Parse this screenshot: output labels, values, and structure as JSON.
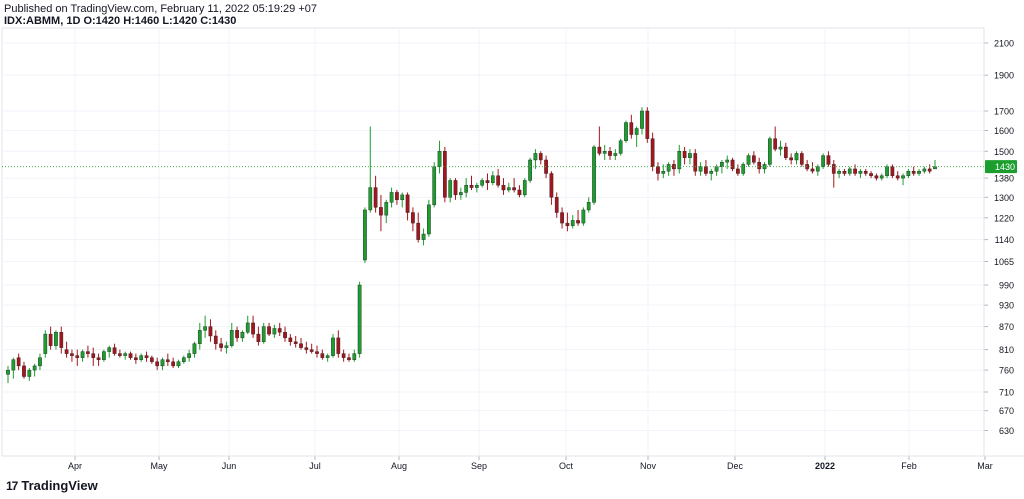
{
  "header": {
    "published": "Published on TradingView.com, February 11, 2022 05:19:29 +07",
    "symbol": "IDX:ABMM, 1D",
    "ohlc": "O:1420 H:1460 L:1420 C:1430"
  },
  "brand": {
    "logo": "17",
    "name": "TradingView"
  },
  "colors": {
    "up": "#1b9e2e",
    "down": "#a5151d",
    "grid": "#f0f3fa",
    "last_line": "#4caf50",
    "last_bg": "#1b9e2e"
  },
  "chart_data": {
    "type": "candlestick",
    "symbol": "IDX:ABMM",
    "interval": "1D",
    "last_price": 1430,
    "y_ticks": [
      2100,
      1900,
      1700,
      1600,
      1500,
      1380,
      1300,
      1220,
      1140,
      1065,
      990,
      930,
      870,
      810,
      760,
      710,
      670,
      630
    ],
    "x_labels": [
      "Apr",
      "May",
      "Jun",
      "Jul",
      "Aug",
      "Sep",
      "Oct",
      "Nov",
      "Dec",
      "2022",
      "Feb",
      "Mar"
    ],
    "y_scale": "log",
    "ylim": [
      582,
      2200
    ],
    "grid": true,
    "candles": [
      [
        750,
        770,
        730,
        760
      ],
      [
        760,
        790,
        740,
        785
      ],
      [
        790,
        800,
        760,
        770
      ],
      [
        770,
        780,
        740,
        745
      ],
      [
        745,
        765,
        735,
        760
      ],
      [
        760,
        775,
        745,
        770
      ],
      [
        770,
        800,
        760,
        790
      ],
      [
        800,
        860,
        790,
        850
      ],
      [
        850,
        870,
        810,
        820
      ],
      [
        820,
        860,
        810,
        855
      ],
      [
        855,
        870,
        800,
        815
      ],
      [
        810,
        830,
        790,
        800
      ],
      [
        800,
        810,
        780,
        795
      ],
      [
        795,
        810,
        770,
        790
      ],
      [
        790,
        810,
        780,
        805
      ],
      [
        805,
        820,
        790,
        800
      ],
      [
        800,
        815,
        770,
        790
      ],
      [
        790,
        800,
        770,
        785
      ],
      [
        785,
        810,
        780,
        805
      ],
      [
        805,
        820,
        790,
        815
      ],
      [
        815,
        825,
        795,
        800
      ],
      [
        800,
        810,
        790,
        795
      ],
      [
        795,
        805,
        785,
        800
      ],
      [
        800,
        805,
        785,
        790
      ],
      [
        790,
        800,
        775,
        785
      ],
      [
        785,
        800,
        780,
        795
      ],
      [
        795,
        805,
        780,
        790
      ],
      [
        790,
        795,
        775,
        780
      ],
      [
        780,
        790,
        760,
        770
      ],
      [
        770,
        790,
        760,
        785
      ],
      [
        785,
        800,
        770,
        780
      ],
      [
        780,
        790,
        765,
        770
      ],
      [
        770,
        785,
        765,
        780
      ],
      [
        780,
        795,
        775,
        790
      ],
      [
        790,
        810,
        780,
        800
      ],
      [
        800,
        830,
        790,
        825
      ],
      [
        825,
        880,
        810,
        860
      ],
      [
        860,
        900,
        840,
        870
      ],
      [
        870,
        890,
        830,
        845
      ],
      [
        845,
        860,
        810,
        825
      ],
      [
        825,
        840,
        805,
        815
      ],
      [
        815,
        830,
        800,
        820
      ],
      [
        820,
        880,
        815,
        860
      ],
      [
        860,
        870,
        830,
        840
      ],
      [
        840,
        860,
        830,
        855
      ],
      [
        855,
        900,
        850,
        880
      ],
      [
        880,
        900,
        840,
        850
      ],
      [
        850,
        870,
        820,
        830
      ],
      [
        830,
        880,
        825,
        870
      ],
      [
        870,
        880,
        845,
        850
      ],
      [
        850,
        875,
        840,
        865
      ],
      [
        865,
        880,
        845,
        855
      ],
      [
        855,
        870,
        830,
        840
      ],
      [
        840,
        850,
        820,
        830
      ],
      [
        830,
        845,
        815,
        825
      ],
      [
        825,
        840,
        810,
        815
      ],
      [
        815,
        830,
        800,
        810
      ],
      [
        810,
        825,
        800,
        805
      ],
      [
        805,
        820,
        790,
        800
      ],
      [
        800,
        810,
        785,
        790
      ],
      [
        790,
        800,
        780,
        795
      ],
      [
        795,
        850,
        790,
        840
      ],
      [
        840,
        860,
        790,
        800
      ],
      [
        800,
        810,
        780,
        790
      ],
      [
        790,
        800,
        780,
        785
      ],
      [
        785,
        810,
        780,
        800
      ],
      [
        800,
        1000,
        790,
        990
      ],
      [
        1070,
        1260,
        1060,
        1250
      ],
      [
        1250,
        1620,
        1240,
        1340
      ],
      [
        1340,
        1390,
        1240,
        1260
      ],
      [
        1260,
        1310,
        1170,
        1230
      ],
      [
        1230,
        1290,
        1200,
        1280
      ],
      [
        1280,
        1340,
        1260,
        1320
      ],
      [
        1320,
        1330,
        1270,
        1290
      ],
      [
        1290,
        1320,
        1260,
        1310
      ],
      [
        1310,
        1320,
        1210,
        1240
      ],
      [
        1240,
        1260,
        1170,
        1200
      ],
      [
        1200,
        1240,
        1130,
        1140
      ],
      [
        1140,
        1180,
        1120,
        1160
      ],
      [
        1160,
        1290,
        1150,
        1270
      ],
      [
        1270,
        1450,
        1260,
        1430
      ],
      [
        1430,
        1550,
        1400,
        1500
      ],
      [
        1500,
        1520,
        1280,
        1300
      ],
      [
        1300,
        1380,
        1280,
        1370
      ],
      [
        1370,
        1380,
        1290,
        1310
      ],
      [
        1310,
        1340,
        1290,
        1320
      ],
      [
        1320,
        1380,
        1300,
        1350
      ],
      [
        1350,
        1390,
        1330,
        1340
      ],
      [
        1340,
        1360,
        1320,
        1350
      ],
      [
        1350,
        1380,
        1340,
        1370
      ],
      [
        1370,
        1400,
        1330,
        1360
      ],
      [
        1360,
        1410,
        1350,
        1390
      ],
      [
        1390,
        1420,
        1340,
        1350
      ],
      [
        1350,
        1380,
        1310,
        1330
      ],
      [
        1330,
        1360,
        1320,
        1340
      ],
      [
        1340,
        1380,
        1320,
        1330
      ],
      [
        1330,
        1350,
        1300,
        1310
      ],
      [
        1310,
        1380,
        1300,
        1370
      ],
      [
        1370,
        1470,
        1360,
        1460
      ],
      [
        1460,
        1510,
        1420,
        1490
      ],
      [
        1490,
        1500,
        1440,
        1460
      ],
      [
        1460,
        1480,
        1380,
        1400
      ],
      [
        1400,
        1410,
        1270,
        1300
      ],
      [
        1300,
        1320,
        1220,
        1240
      ],
      [
        1240,
        1260,
        1180,
        1200
      ],
      [
        1200,
        1240,
        1170,
        1190
      ],
      [
        1190,
        1230,
        1180,
        1210
      ],
      [
        1210,
        1250,
        1190,
        1200
      ],
      [
        1200,
        1260,
        1190,
        1250
      ],
      [
        1250,
        1300,
        1240,
        1280
      ],
      [
        1280,
        1530,
        1270,
        1520
      ],
      [
        1520,
        1620,
        1480,
        1490
      ],
      [
        1490,
        1530,
        1460,
        1500
      ],
      [
        1500,
        1520,
        1460,
        1480
      ],
      [
        1480,
        1510,
        1460,
        1490
      ],
      [
        1490,
        1560,
        1480,
        1550
      ],
      [
        1550,
        1650,
        1540,
        1640
      ],
      [
        1640,
        1680,
        1560,
        1580
      ],
      [
        1580,
        1620,
        1520,
        1610
      ],
      [
        1610,
        1720,
        1580,
        1700
      ],
      [
        1700,
        1720,
        1540,
        1560
      ],
      [
        1560,
        1590,
        1410,
        1430
      ],
      [
        1430,
        1450,
        1370,
        1400
      ],
      [
        1400,
        1440,
        1380,
        1410
      ],
      [
        1410,
        1450,
        1390,
        1440
      ],
      [
        1440,
        1460,
        1390,
        1420
      ],
      [
        1420,
        1530,
        1400,
        1500
      ],
      [
        1500,
        1520,
        1440,
        1470
      ],
      [
        1470,
        1510,
        1440,
        1490
      ],
      [
        1490,
        1510,
        1390,
        1410
      ],
      [
        1410,
        1450,
        1390,
        1430
      ],
      [
        1430,
        1460,
        1390,
        1400
      ],
      [
        1400,
        1420,
        1370,
        1410
      ],
      [
        1410,
        1440,
        1390,
        1430
      ],
      [
        1430,
        1460,
        1400,
        1450
      ],
      [
        1450,
        1480,
        1420,
        1460
      ],
      [
        1460,
        1470,
        1410,
        1420
      ],
      [
        1420,
        1440,
        1390,
        1400
      ],
      [
        1400,
        1450,
        1390,
        1440
      ],
      [
        1440,
        1490,
        1430,
        1480
      ],
      [
        1480,
        1500,
        1440,
        1450
      ],
      [
        1450,
        1470,
        1400,
        1420
      ],
      [
        1420,
        1450,
        1400,
        1440
      ],
      [
        1440,
        1570,
        1430,
        1560
      ],
      [
        1560,
        1620,
        1500,
        1510
      ],
      [
        1510,
        1550,
        1480,
        1520
      ],
      [
        1520,
        1540,
        1460,
        1470
      ],
      [
        1470,
        1490,
        1440,
        1460
      ],
      [
        1460,
        1500,
        1440,
        1490
      ],
      [
        1490,
        1500,
        1430,
        1440
      ],
      [
        1440,
        1460,
        1410,
        1420
      ],
      [
        1420,
        1450,
        1400,
        1410
      ],
      [
        1410,
        1440,
        1390,
        1430
      ],
      [
        1430,
        1490,
        1420,
        1480
      ],
      [
        1480,
        1500,
        1430,
        1440
      ],
      [
        1440,
        1460,
        1340,
        1400
      ],
      [
        1400,
        1420,
        1380,
        1410
      ],
      [
        1410,
        1420,
        1390,
        1400
      ],
      [
        1400,
        1430,
        1390,
        1420
      ],
      [
        1420,
        1440,
        1390,
        1400
      ],
      [
        1400,
        1420,
        1380,
        1410
      ],
      [
        1410,
        1420,
        1390,
        1400
      ],
      [
        1400,
        1410,
        1380,
        1390
      ],
      [
        1390,
        1400,
        1370,
        1380
      ],
      [
        1380,
        1400,
        1370,
        1390
      ],
      [
        1390,
        1440,
        1380,
        1430
      ],
      [
        1430,
        1440,
        1380,
        1390
      ],
      [
        1390,
        1410,
        1370,
        1380
      ],
      [
        1380,
        1400,
        1350,
        1390
      ],
      [
        1390,
        1420,
        1380,
        1410
      ],
      [
        1410,
        1430,
        1390,
        1400
      ],
      [
        1400,
        1420,
        1390,
        1410
      ],
      [
        1410,
        1430,
        1400,
        1420
      ],
      [
        1420,
        1440,
        1400,
        1410
      ],
      [
        1420,
        1460,
        1420,
        1430
      ]
    ]
  }
}
